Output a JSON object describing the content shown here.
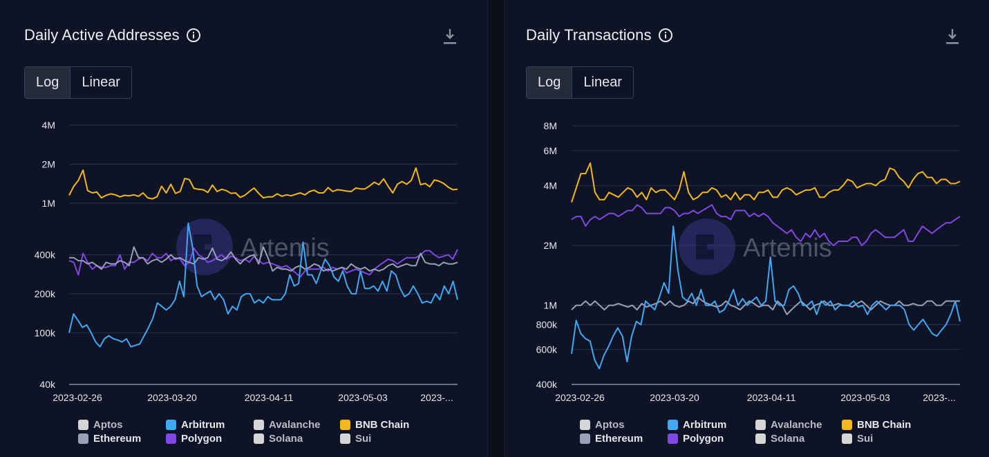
{
  "colors": {
    "aptos": "#d6d6d6",
    "arbitrum": "#40a9f5",
    "avalanche": "#d6d6d6",
    "bnb": "#f4b81c",
    "ethereum": "#9aa0b8",
    "polygon": "#8247e5",
    "solana": "#d6d6d6",
    "sui": "#d6d6d6"
  },
  "watermark": "Artemis",
  "legend": [
    {
      "label": "Aptos",
      "color": "#d6d6d6",
      "dim": true
    },
    {
      "label": "Arbitrum",
      "color": "#40a9f5",
      "dim": false
    },
    {
      "label": "Avalanche",
      "color": "#d6d6d6",
      "dim": true
    },
    {
      "label": "BNB Chain",
      "color": "#f4b81c",
      "dim": false
    },
    {
      "label": "Ethereum",
      "color": "#9aa0b8",
      "dim": false
    },
    {
      "label": "Polygon",
      "color": "#8247e5",
      "dim": false
    },
    {
      "label": "Solana",
      "color": "#d6d6d6",
      "dim": true
    },
    {
      "label": "Sui",
      "color": "#d6d6d6",
      "dim": true
    }
  ],
  "left": {
    "title": "Daily Active Addresses",
    "toggle": {
      "log": "Log",
      "linear": "Linear",
      "active": "log"
    }
  },
  "right": {
    "title": "Daily Transactions",
    "toggle": {
      "log": "Log",
      "linear": "Linear",
      "active": "log"
    }
  },
  "chart_data": [
    {
      "type": "line",
      "title": "Daily Active Addresses",
      "yscale": "log",
      "ylim": [
        40000,
        4000000
      ],
      "yticks": [
        {
          "value": 4000000,
          "label": "4M"
        },
        {
          "value": 2000000,
          "label": "2M"
        },
        {
          "value": 1000000,
          "label": "1M"
        },
        {
          "value": 400000,
          "label": "400k"
        },
        {
          "value": 200000,
          "label": "200k"
        },
        {
          "value": 100000,
          "label": "100k"
        },
        {
          "value": 40000,
          "label": "40k"
        }
      ],
      "xticks": [
        "2023-02-26",
        "2023-03-20",
        "2023-04-11",
        "2023-05-03",
        "2023-..."
      ],
      "x_start": "2023-02-26",
      "x_end": "2023-05-24",
      "series": [
        {
          "name": "BNB Chain",
          "color": "#f4b81c",
          "values": [
            1150000,
            1350000,
            1500000,
            1800000,
            1250000,
            1200000,
            1220000,
            1100000,
            1150000,
            1180000,
            1160000,
            1120000,
            1150000,
            1140000,
            1160000,
            1130000,
            1200000,
            1100000,
            1080000,
            1120000,
            1350000,
            1200000,
            1400000,
            1190000,
            1230000,
            1550000,
            1520000,
            1300000,
            1280000,
            1270000,
            1210000,
            1380000,
            1230000,
            1280000,
            1250000,
            1190000,
            1200000,
            1110000,
            1150000,
            1230000,
            1310000,
            1190000,
            1100000,
            1120000,
            1120000,
            1180000,
            1130000,
            1160000,
            1140000,
            1170000,
            1200000,
            1160000,
            1230000,
            1260000,
            1200000,
            1200000,
            1320000,
            1230000,
            1270000,
            1260000,
            1240000,
            1230000,
            1310000,
            1290000,
            1290000,
            1360000,
            1450000,
            1390000,
            1540000,
            1350000,
            1200000,
            1400000,
            1470000,
            1400000,
            1500000,
            1870000,
            1390000,
            1420000,
            1340000,
            1510000,
            1480000,
            1420000,
            1330000,
            1270000,
            1280000
          ]
        },
        {
          "name": "Polygon",
          "color": "#8247e5",
          "values": [
            360000,
            350000,
            280000,
            410000,
            350000,
            310000,
            330000,
            320000,
            320000,
            330000,
            330000,
            400000,
            310000,
            350000,
            350000,
            370000,
            380000,
            360000,
            410000,
            380000,
            380000,
            410000,
            360000,
            380000,
            370000,
            330000,
            350000,
            450000,
            400000,
            380000,
            350000,
            360000,
            380000,
            400000,
            370000,
            390000,
            380000,
            360000,
            370000,
            350000,
            390000,
            360000,
            340000,
            350000,
            340000,
            330000,
            320000,
            330000,
            310000,
            290000,
            270000,
            300000,
            310000,
            310000,
            310000,
            320000,
            300000,
            320000,
            310000,
            320000,
            290000,
            300000,
            310000,
            300000,
            290000,
            280000,
            310000,
            330000,
            350000,
            370000,
            360000,
            340000,
            360000,
            380000,
            380000,
            380000,
            400000,
            430000,
            430000,
            400000,
            380000,
            390000,
            400000,
            370000,
            440000
          ]
        },
        {
          "name": "Ethereum",
          "color": "#9aa0b8",
          "values": [
            380000,
            380000,
            360000,
            360000,
            340000,
            350000,
            330000,
            310000,
            350000,
            340000,
            340000,
            360000,
            350000,
            330000,
            460000,
            380000,
            380000,
            340000,
            360000,
            370000,
            350000,
            370000,
            400000,
            370000,
            380000,
            360000,
            350000,
            340000,
            380000,
            370000,
            380000,
            450000,
            370000,
            360000,
            380000,
            420000,
            370000,
            340000,
            370000,
            390000,
            400000,
            340000,
            460000,
            380000,
            300000,
            320000,
            310000,
            310000,
            300000,
            320000,
            330000,
            310000,
            320000,
            340000,
            330000,
            300000,
            310000,
            300000,
            310000,
            320000,
            310000,
            340000,
            320000,
            310000,
            320000,
            300000,
            310000,
            300000,
            310000,
            330000,
            340000,
            320000,
            330000,
            340000,
            330000,
            330000,
            410000,
            350000,
            340000,
            340000,
            330000,
            350000,
            340000,
            340000,
            350000
          ]
        },
        {
          "name": "Arbitrum",
          "color": "#40a9f5",
          "values": [
            100000,
            140000,
            125000,
            110000,
            115000,
            100000,
            85000,
            78000,
            90000,
            95000,
            90000,
            88000,
            85000,
            90000,
            78000,
            80000,
            82000,
            95000,
            110000,
            130000,
            170000,
            160000,
            150000,
            160000,
            180000,
            250000,
            190000,
            700000,
            450000,
            230000,
            190000,
            200000,
            210000,
            180000,
            200000,
            180000,
            140000,
            160000,
            150000,
            190000,
            200000,
            200000,
            170000,
            180000,
            170000,
            190000,
            180000,
            180000,
            180000,
            200000,
            280000,
            230000,
            240000,
            500000,
            280000,
            280000,
            240000,
            300000,
            370000,
            330000,
            270000,
            250000,
            300000,
            230000,
            200000,
            200000,
            300000,
            220000,
            220000,
            230000,
            210000,
            250000,
            210000,
            300000,
            280000,
            220000,
            190000,
            200000,
            230000,
            200000,
            170000,
            175000,
            170000,
            200000,
            180000,
            230000,
            200000,
            250000,
            180000
          ]
        }
      ]
    },
    {
      "type": "line",
      "title": "Daily Transactions",
      "yscale": "log",
      "ylim": [
        400000,
        8000000
      ],
      "yticks": [
        {
          "value": 8000000,
          "label": "8M"
        },
        {
          "value": 6000000,
          "label": "6M"
        },
        {
          "value": 4000000,
          "label": "4M"
        },
        {
          "value": 2000000,
          "label": "2M"
        },
        {
          "value": 1000000,
          "label": "1M"
        },
        {
          "value": 800000,
          "label": "800k"
        },
        {
          "value": 600000,
          "label": "600k"
        },
        {
          "value": 400000,
          "label": "400k"
        }
      ],
      "xticks": [
        "2023-02-26",
        "2023-03-20",
        "2023-04-11",
        "2023-05-03",
        "2023-..."
      ],
      "x_start": "2023-02-26",
      "x_end": "2023-05-24",
      "series": [
        {
          "name": "BNB Chain",
          "color": "#f4b81c",
          "values": [
            3300000,
            3900000,
            4600000,
            4600000,
            5200000,
            3700000,
            3400000,
            3400000,
            3700000,
            3600000,
            3500000,
            3700000,
            3900000,
            3800000,
            3500000,
            3700000,
            3400000,
            3900000,
            3700000,
            3800000,
            3800000,
            3600000,
            3400000,
            3800000,
            4700000,
            3700000,
            3400000,
            3500000,
            3700000,
            3700000,
            3900000,
            3800000,
            3500000,
            3600000,
            3400000,
            3700000,
            3400000,
            3600000,
            3600000,
            3400000,
            3700000,
            3700000,
            3800000,
            3500000,
            3500000,
            3800000,
            3900000,
            3800000,
            3600000,
            3700000,
            3800000,
            3800000,
            3900000,
            3500000,
            3500000,
            3700000,
            3800000,
            3800000,
            4000000,
            4300000,
            4200000,
            3900000,
            4000000,
            4100000,
            4100000,
            4000000,
            4200000,
            4300000,
            4900000,
            4800000,
            4400000,
            4200000,
            3900000,
            4300000,
            4600000,
            4700000,
            4400000,
            4400000,
            4100000,
            4300000,
            4300000,
            4100000,
            4100000,
            4200000
          ]
        },
        {
          "name": "Polygon",
          "color": "#8247e5",
          "values": [
            2700000,
            2800000,
            2800000,
            2500000,
            2700000,
            2800000,
            2700000,
            2800000,
            2900000,
            2900000,
            2800000,
            2900000,
            3000000,
            3000000,
            3200000,
            3100000,
            2900000,
            2900000,
            2900000,
            2900000,
            3100000,
            3100000,
            3000000,
            2800000,
            2900000,
            2900000,
            3000000,
            2900000,
            3000000,
            3100000,
            3200000,
            2900000,
            2800000,
            2800000,
            2700000,
            3000000,
            3000000,
            3000000,
            2800000,
            2900000,
            2800000,
            2900000,
            2800000,
            2600000,
            2500000,
            2400000,
            2300000,
            2400000,
            2200000,
            2100000,
            2300000,
            2200000,
            2400000,
            2200000,
            2300000,
            2100000,
            2000000,
            2100000,
            2100000,
            2100000,
            2200000,
            2200000,
            2000000,
            2100000,
            2300000,
            2400000,
            2300000,
            2200000,
            2200000,
            2200000,
            2300000,
            2400000,
            2100000,
            2100000,
            2300000,
            2500000,
            2400000,
            2300000,
            2400000,
            2500000,
            2600000,
            2600000,
            2700000,
            2800000
          ]
        },
        {
          "name": "Ethereum",
          "color": "#9aa0b8",
          "values": [
            950000,
            1000000,
            1000000,
            1050000,
            1000000,
            1050000,
            1000000,
            950000,
            1000000,
            1000000,
            1020000,
            1000000,
            980000,
            1000000,
            950000,
            1020000,
            980000,
            1000000,
            1020000,
            1050000,
            1000000,
            1050000,
            1000000,
            980000,
            1000000,
            1050000,
            1020000,
            1100000,
            1050000,
            1020000,
            1000000,
            980000,
            1000000,
            1050000,
            1000000,
            980000,
            950000,
            1000000,
            1050000,
            1020000,
            980000,
            1000000,
            1000000,
            950000,
            1050000,
            1000000,
            900000,
            950000,
            1000000,
            1050000,
            1000000,
            950000,
            1000000,
            1020000,
            1050000,
            1000000,
            1000000,
            1020000,
            1000000,
            1000000,
            980000,
            1020000,
            1050000,
            1000000,
            950000,
            1000000,
            1050000,
            1020000,
            1000000,
            1000000,
            1050000,
            1000000,
            1000000,
            1020000,
            1000000,
            1000000,
            1050000,
            1050000,
            1000000,
            1000000,
            1050000,
            1050000,
            1050000,
            1050000
          ]
        },
        {
          "name": "Arbitrum",
          "color": "#40a9f5",
          "values": [
            570000,
            840000,
            720000,
            680000,
            660000,
            530000,
            480000,
            560000,
            620000,
            700000,
            770000,
            700000,
            520000,
            700000,
            830000,
            800000,
            1050000,
            1000000,
            950000,
            1100000,
            1300000,
            1150000,
            2500000,
            1500000,
            1100000,
            1050000,
            1150000,
            1000000,
            1200000,
            1000000,
            1000000,
            1050000,
            920000,
            950000,
            1050000,
            1200000,
            1000000,
            1080000,
            1000000,
            1050000,
            1100000,
            1000000,
            1050000,
            1750000,
            1050000,
            1000000,
            1000000,
            1200000,
            1250000,
            1150000,
            1000000,
            1000000,
            1050000,
            900000,
            1050000,
            1000000,
            1050000,
            950000,
            1000000,
            1000000,
            1000000,
            1050000,
            980000,
            1000000,
            900000,
            1000000,
            1050000,
            1000000,
            950000,
            1000000,
            1000000,
            1000000,
            950000,
            800000,
            750000,
            800000,
            850000,
            780000,
            720000,
            700000,
            750000,
            800000,
            900000,
            1050000,
            830000
          ]
        }
      ]
    }
  ]
}
